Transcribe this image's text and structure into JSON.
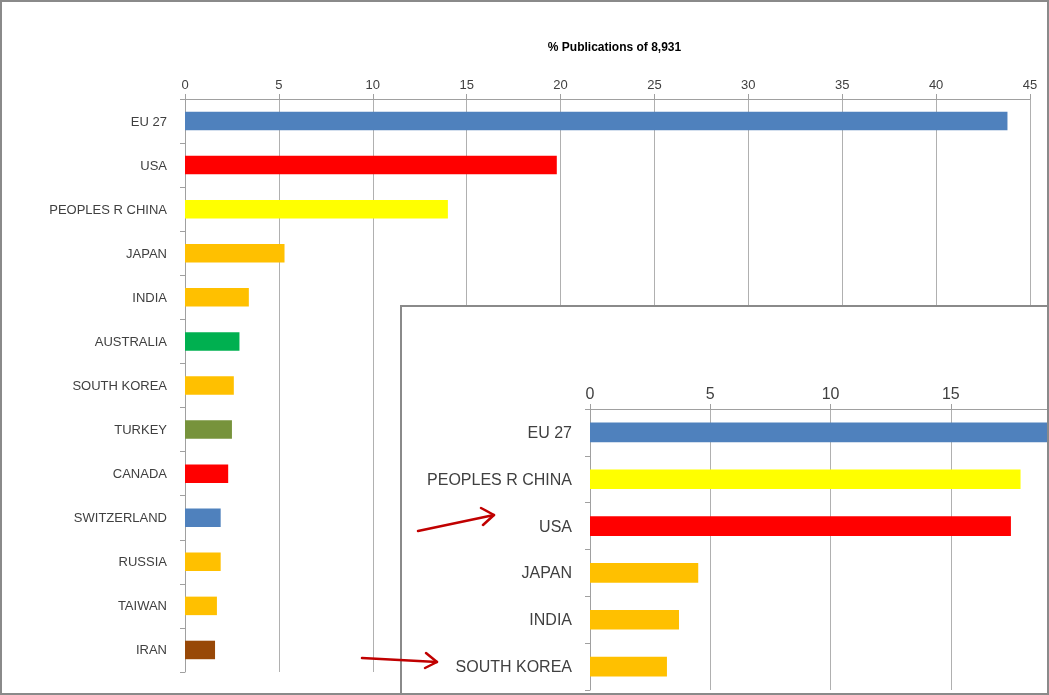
{
  "chart_data": [
    {
      "type": "bar",
      "orientation": "horizontal",
      "title": "% Publications of 8,931",
      "categories": [
        "EU 27",
        "USA",
        "PEOPLES R CHINA",
        "JAPAN",
        "INDIA",
        "AUSTRALIA",
        "SOUTH KOREA",
        "TURKEY",
        "CANADA",
        "SWITZERLAND",
        "RUSSIA",
        "TAIWAN",
        "IRAN"
      ],
      "values": [
        43.8,
        19.8,
        14.0,
        5.3,
        3.4,
        2.9,
        2.6,
        2.5,
        2.3,
        1.9,
        1.9,
        1.7,
        1.6
      ],
      "colors": [
        "#4f81bd",
        "#ff0000",
        "#ffff00",
        "#ffc000",
        "#ffc000",
        "#00b050",
        "#ffc000",
        "#77933c",
        "#ff0000",
        "#4f81bd",
        "#ffc000",
        "#ffc000",
        "#984807"
      ],
      "xlim": [
        0,
        45
      ],
      "xticks": [
        0,
        5,
        10,
        15,
        20,
        25,
        30,
        35,
        40,
        45
      ],
      "grid": "x"
    },
    {
      "type": "bar",
      "orientation": "horizontal",
      "categories": [
        "EU 27",
        "PEOPLES R CHINA",
        "USA",
        "JAPAN",
        "INDIA",
        "SOUTH KOREA"
      ],
      "values": [
        19,
        17.9,
        17.5,
        4.5,
        3.7,
        3.2
      ],
      "colors": [
        "#4f81bd",
        "#ffff00",
        "#ff0000",
        "#ffc000",
        "#ffc000",
        "#ffc000"
      ],
      "xlim": [
        0,
        19
      ],
      "xticks": [
        0,
        5,
        10,
        15
      ],
      "grid": "x"
    }
  ]
}
